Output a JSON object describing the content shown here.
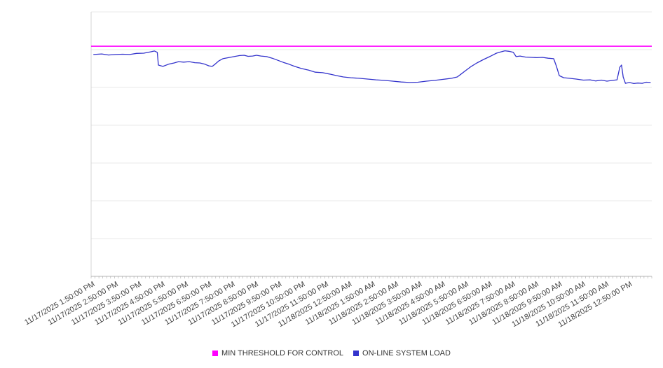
{
  "chart_data": {
    "type": "line",
    "title": "",
    "xlabel": "",
    "ylabel": "",
    "ylim": [
      0,
      100
    ],
    "y_axis_note": "no y-axis tick labels visible; series values estimated as percent of plot height",
    "grid": "horizontal",
    "legend_position": "bottom-center",
    "x_tick_label_rotation_deg": -30,
    "categories": [
      "11/17/2025 1:50:00 PM",
      "11/17/2025 2:50:00 PM",
      "11/17/2025 3:50:00 PM",
      "11/17/2025 4:50:00 PM",
      "11/17/2025 5:50:00 PM",
      "11/17/2025 6:50:00 PM",
      "11/17/2025 7:50:00 PM",
      "11/17/2025 8:50:00 PM",
      "11/17/2025 9:50:00 PM",
      "11/17/2025 10:50:00 PM",
      "11/17/2025 11:50:00 PM",
      "11/18/2025 12:50:00 AM",
      "11/18/2025 1:50:00 AM",
      "11/18/2025 2:50:00 AM",
      "11/18/2025 3:50:00 AM",
      "11/18/2025 4:50:00 AM",
      "11/18/2025 5:50:00 AM",
      "11/18/2025 6:50:00 AM",
      "11/18/2025 7:50:00 AM",
      "11/18/2025 8:50:00 AM",
      "11/18/2025 9:50:00 AM",
      "11/18/2025 10:50:00 AM",
      "11/18/2025 11:50:00 AM",
      "11/18/2025 12:50:00 PM"
    ],
    "series": [
      {
        "name": "MIN THRESHOLD FOR CONTROL",
        "color": "#ff00ff",
        "type": "threshold",
        "value": 87
      },
      {
        "name": "ON-LINE SYSTEM LOAD",
        "color": "#3333cc",
        "type": "line",
        "points": [
          [
            0.004,
            83.9
          ],
          [
            0.019,
            84.1
          ],
          [
            0.031,
            83.7
          ],
          [
            0.044,
            83.9
          ],
          [
            0.056,
            84.0
          ],
          [
            0.069,
            83.9
          ],
          [
            0.081,
            84.3
          ],
          [
            0.094,
            84.4
          ],
          [
            0.106,
            84.9
          ],
          [
            0.113,
            85.2
          ],
          [
            0.118,
            84.7
          ],
          [
            0.12,
            79.9
          ],
          [
            0.128,
            79.4
          ],
          [
            0.138,
            80.2
          ],
          [
            0.148,
            80.7
          ],
          [
            0.156,
            81.2
          ],
          [
            0.165,
            81.0
          ],
          [
            0.175,
            81.2
          ],
          [
            0.185,
            80.8
          ],
          [
            0.194,
            80.7
          ],
          [
            0.203,
            80.2
          ],
          [
            0.21,
            79.6
          ],
          [
            0.216,
            79.4
          ],
          [
            0.221,
            80.2
          ],
          [
            0.228,
            81.5
          ],
          [
            0.235,
            82.3
          ],
          [
            0.245,
            82.7
          ],
          [
            0.255,
            83.1
          ],
          [
            0.265,
            83.5
          ],
          [
            0.273,
            83.6
          ],
          [
            0.28,
            83.2
          ],
          [
            0.288,
            83.3
          ],
          [
            0.295,
            83.6
          ],
          [
            0.303,
            83.3
          ],
          [
            0.313,
            83.1
          ],
          [
            0.323,
            82.5
          ],
          [
            0.333,
            81.7
          ],
          [
            0.343,
            80.9
          ],
          [
            0.353,
            80.2
          ],
          [
            0.363,
            79.4
          ],
          [
            0.375,
            78.6
          ],
          [
            0.388,
            78.0
          ],
          [
            0.4,
            77.2
          ],
          [
            0.413,
            77.0
          ],
          [
            0.425,
            76.5
          ],
          [
            0.438,
            75.9
          ],
          [
            0.45,
            75.4
          ],
          [
            0.463,
            75.1
          ],
          [
            0.478,
            74.9
          ],
          [
            0.493,
            74.6
          ],
          [
            0.508,
            74.3
          ],
          [
            0.523,
            74.1
          ],
          [
            0.538,
            73.8
          ],
          [
            0.553,
            73.5
          ],
          [
            0.568,
            73.3
          ],
          [
            0.583,
            73.4
          ],
          [
            0.598,
            73.8
          ],
          [
            0.613,
            74.1
          ],
          [
            0.628,
            74.5
          ],
          [
            0.643,
            74.9
          ],
          [
            0.653,
            75.4
          ],
          [
            0.66,
            76.5
          ],
          [
            0.668,
            77.8
          ],
          [
            0.678,
            79.4
          ],
          [
            0.688,
            80.7
          ],
          [
            0.7,
            82.0
          ],
          [
            0.713,
            83.3
          ],
          [
            0.723,
            84.4
          ],
          [
            0.731,
            84.9
          ],
          [
            0.738,
            85.3
          ],
          [
            0.745,
            85.1
          ],
          [
            0.753,
            84.7
          ],
          [
            0.758,
            83.1
          ],
          [
            0.765,
            83.3
          ],
          [
            0.775,
            82.9
          ],
          [
            0.785,
            82.8
          ],
          [
            0.795,
            82.7
          ],
          [
            0.805,
            82.8
          ],
          [
            0.815,
            82.5
          ],
          [
            0.825,
            82.3
          ],
          [
            0.83,
            79.4
          ],
          [
            0.835,
            75.9
          ],
          [
            0.843,
            75.1
          ],
          [
            0.853,
            74.9
          ],
          [
            0.865,
            74.6
          ],
          [
            0.878,
            74.2
          ],
          [
            0.89,
            74.3
          ],
          [
            0.9,
            73.9
          ],
          [
            0.91,
            74.2
          ],
          [
            0.92,
            73.8
          ],
          [
            0.93,
            74.1
          ],
          [
            0.938,
            74.3
          ],
          [
            0.943,
            79.1
          ],
          [
            0.946,
            79.9
          ],
          [
            0.949,
            75.4
          ],
          [
            0.953,
            73.0
          ],
          [
            0.96,
            73.3
          ],
          [
            0.968,
            72.9
          ],
          [
            0.975,
            73.1
          ],
          [
            0.983,
            73.0
          ],
          [
            0.99,
            73.4
          ],
          [
            0.998,
            73.3
          ]
        ]
      }
    ]
  }
}
